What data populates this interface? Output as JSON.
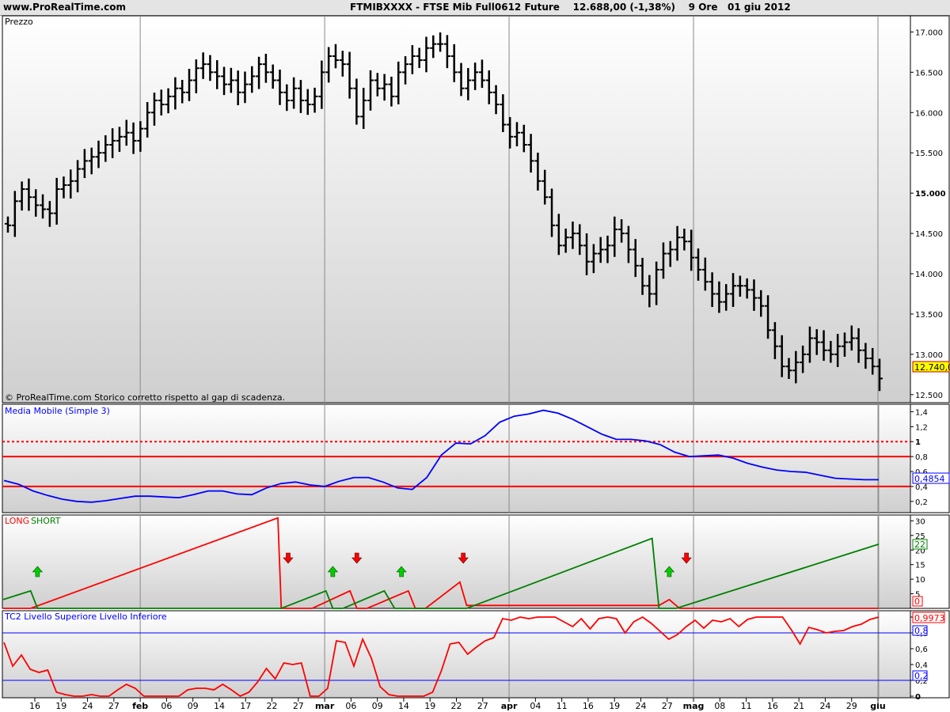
{
  "header": {
    "site": "www.ProRealTime.com",
    "title": "FTMIBXXXX - FTSE Mib Full0612 Future    12.688,00 (-1,38%)    9 Ore   01 giu 2012"
  },
  "colors": {
    "price": "#000000",
    "ma": "#0000ff",
    "long": "#ff0000",
    "short": "#008000",
    "level": "#0000ff",
    "ref": "#ff0000",
    "panel_bg_top": "#ffffff",
    "panel_bg_bottom": "#cfcfcf"
  },
  "price_panel": {
    "label": "Prezzo",
    "footer": "© ProRealTime.com  Storico corretto rispetto al gap di scadenza.",
    "current_value_label": "12.740,0",
    "y_ticks": [
      "17.000",
      "16.500",
      "16.000",
      "15.500",
      "15.000",
      "14.500",
      "14.000",
      "13.500",
      "13.000",
      "12.500"
    ]
  },
  "ma_panel": {
    "label": "Media Mobile (Simple 3)",
    "current_value_label": "0,4854",
    "y_ticks": [
      "1,4",
      "1,2",
      "1",
      "0,8",
      "0,6",
      "0,4",
      "0,2"
    ]
  },
  "ls_panel": {
    "label_long": "LONG",
    "label_short": "SHORT",
    "value_long_label": "0",
    "value_short_label": "22",
    "y_ticks": [
      "30",
      "25",
      "20",
      "15",
      "10",
      "5"
    ]
  },
  "tc2_panel": {
    "label": "TC2 Livello Superiore Livello Inferiore",
    "current_value_label": "0,9973",
    "upper_label": "0,8",
    "lower_label": "0,2",
    "y_ticks": [
      "1",
      "0,8",
      "0,6",
      "0,4",
      "0,2",
      "0"
    ]
  },
  "x_axis": {
    "ticks": [
      {
        "label": "16",
        "bold": false
      },
      {
        "label": "19",
        "bold": false
      },
      {
        "label": "24",
        "bold": false
      },
      {
        "label": "27",
        "bold": false
      },
      {
        "label": "feb",
        "bold": true
      },
      {
        "label": "06",
        "bold": false
      },
      {
        "label": "09",
        "bold": false
      },
      {
        "label": "14",
        "bold": false
      },
      {
        "label": "17",
        "bold": false
      },
      {
        "label": "22",
        "bold": false
      },
      {
        "label": "27",
        "bold": false
      },
      {
        "label": "mar",
        "bold": true
      },
      {
        "label": "06",
        "bold": false
      },
      {
        "label": "09",
        "bold": false
      },
      {
        "label": "14",
        "bold": false
      },
      {
        "label": "19",
        "bold": false
      },
      {
        "label": "22",
        "bold": false
      },
      {
        "label": "27",
        "bold": false
      },
      {
        "label": "apr",
        "bold": true
      },
      {
        "label": "04",
        "bold": false
      },
      {
        "label": "11",
        "bold": false
      },
      {
        "label": "16",
        "bold": false
      },
      {
        "label": "19",
        "bold": false
      },
      {
        "label": "24",
        "bold": false
      },
      {
        "label": "27",
        "bold": false
      },
      {
        "label": "mag",
        "bold": true
      },
      {
        "label": "08",
        "bold": false
      },
      {
        "label": "11",
        "bold": false
      },
      {
        "label": "16",
        "bold": false
      },
      {
        "label": "21",
        "bold": false
      },
      {
        "label": "24",
        "bold": false
      },
      {
        "label": "29",
        "bold": false
      },
      {
        "label": "giu",
        "bold": true
      }
    ]
  },
  "chart_data": [
    {
      "type": "ohlc",
      "ylim": [
        12400,
        17200
      ],
      "close": [
        14600,
        14900,
        15050,
        14950,
        14850,
        14800,
        14750,
        15050,
        15100,
        15150,
        15300,
        15400,
        15450,
        15500,
        15600,
        15650,
        15700,
        15750,
        15650,
        15800,
        16000,
        16150,
        16100,
        16200,
        16300,
        16250,
        16400,
        16550,
        16600,
        16500,
        16450,
        16350,
        16400,
        16250,
        16350,
        16450,
        16600,
        16500,
        16400,
        16250,
        16150,
        16300,
        16150,
        16100,
        16200,
        16500,
        16700,
        16650,
        16600,
        16300,
        15950,
        16150,
        16400,
        16300,
        16350,
        16200,
        16500,
        16600,
        16700,
        16650,
        16800,
        16850,
        16850,
        16700,
        16500,
        16300,
        16400,
        16500,
        16400,
        16250,
        16100,
        15850,
        15700,
        15750,
        15600,
        15400,
        15150,
        14950,
        14600,
        14350,
        14450,
        14500,
        14350,
        14150,
        14250,
        14300,
        14350,
        14550,
        14500,
        14300,
        14100,
        13850,
        13750,
        14050,
        14250,
        14300,
        14450,
        14400,
        14200,
        14050,
        13900,
        13750,
        13650,
        13750,
        13850,
        13850,
        13800,
        13700,
        13600,
        13300,
        13100,
        12850,
        12800,
        12900,
        13000,
        13200,
        13150,
        13050,
        13000,
        13100,
        13150,
        13200,
        13050,
        12950,
        12850,
        12700
      ],
      "series": [
        {
          "name": "Prezzo"
        }
      ]
    },
    {
      "type": "line",
      "title": "Media Mobile (Simple 3)",
      "ylim": [
        0.05,
        1.5
      ],
      "reference_lines": [
        1.0,
        0.8,
        0.4
      ],
      "series": [
        {
          "name": "Media Mobile (Simple 3)",
          "values": [
            0.48,
            0.43,
            0.34,
            0.28,
            0.23,
            0.2,
            0.19,
            0.21,
            0.24,
            0.27,
            0.27,
            0.26,
            0.25,
            0.29,
            0.34,
            0.34,
            0.3,
            0.29,
            0.38,
            0.44,
            0.46,
            0.42,
            0.4,
            0.47,
            0.52,
            0.52,
            0.46,
            0.38,
            0.36,
            0.52,
            0.82,
            0.98,
            0.97,
            1.08,
            1.26,
            1.34,
            1.37,
            1.42,
            1.38,
            1.3,
            1.2,
            1.1,
            1.03,
            1.03,
            1.01,
            0.96,
            0.86,
            0.8,
            0.81,
            0.82,
            0.78,
            0.71,
            0.66,
            0.62,
            0.6,
            0.59,
            0.55,
            0.51,
            0.5,
            0.49,
            0.49
          ]
        }
      ]
    },
    {
      "type": "line",
      "ylim": [
        0,
        32
      ],
      "series": [
        {
          "name": "LONG",
          "points": [
            [
              0,
              0
            ],
            [
              8,
              0
            ],
            [
              80,
              31
            ],
            [
              81,
              0
            ],
            [
              90,
              0
            ],
            [
              101,
              6
            ],
            [
              103,
              0
            ],
            [
              105,
              0
            ],
            [
              106,
              0
            ],
            [
              118,
              6
            ],
            [
              120,
              0
            ],
            [
              123,
              0
            ],
            [
              133,
              9
            ],
            [
              135,
              1
            ],
            [
              191,
              1
            ],
            [
              194,
              3
            ],
            [
              197,
              0
            ],
            [
              246,
              0
            ],
            [
              255,
              0
            ]
          ]
        },
        {
          "name": "SHORT",
          "points": [
            [
              0,
              3
            ],
            [
              8,
              6
            ],
            [
              10,
              0
            ],
            [
              80,
              0
            ],
            [
              81,
              0
            ],
            [
              94,
              6
            ],
            [
              96,
              0
            ],
            [
              99,
              0
            ],
            [
              111,
              6
            ],
            [
              114,
              0
            ],
            [
              133,
              0
            ],
            [
              135,
              0
            ],
            [
              189,
              24
            ],
            [
              191,
              0
            ],
            [
              194,
              0
            ],
            [
              196,
              0
            ],
            [
              255,
              22
            ]
          ]
        }
      ],
      "markers": [
        {
          "type": "up",
          "color": "green",
          "x": 10
        },
        {
          "type": "down",
          "color": "red",
          "x": 83
        },
        {
          "type": "up",
          "color": "green",
          "x": 96
        },
        {
          "type": "down",
          "color": "red",
          "x": 103
        },
        {
          "type": "up",
          "color": "green",
          "x": 116
        },
        {
          "type": "down",
          "color": "red",
          "x": 134
        },
        {
          "type": "up",
          "color": "green",
          "x": 194
        },
        {
          "type": "down",
          "color": "red",
          "x": 199
        }
      ]
    },
    {
      "type": "line",
      "title": "TC2 Livello Superiore Livello Inferiore",
      "ylim": [
        -0.02,
        1.08
      ],
      "reference_lines": [
        0.8,
        0.2
      ],
      "series": [
        {
          "name": "TC2",
          "values": [
            0.68,
            0.38,
            0.52,
            0.34,
            0.3,
            0.33,
            0.05,
            0.02,
            0.0,
            0.0,
            0.02,
            0.0,
            0.0,
            0.08,
            0.15,
            0.1,
            0.0,
            0.0,
            0.0,
            0.0,
            0.0,
            0.08,
            0.1,
            0.1,
            0.08,
            0.15,
            0.08,
            0.0,
            0.05,
            0.18,
            0.35,
            0.22,
            0.42,
            0.4,
            0.42,
            0.0,
            0.0,
            0.1,
            0.7,
            0.68,
            0.38,
            0.72,
            0.48,
            0.12,
            0.02,
            0.0,
            0.0,
            0.0,
            0.0,
            0.05,
            0.32,
            0.66,
            0.68,
            0.53,
            0.62,
            0.7,
            0.74,
            0.98,
            0.96,
            1.0,
            0.98,
            1.0,
            1.0,
            1.0,
            0.94,
            0.88,
            0.98,
            0.85,
            0.98,
            1.0,
            0.98,
            0.8,
            0.94,
            1.0,
            0.92,
            0.82,
            0.72,
            0.78,
            0.88,
            0.96,
            0.86,
            0.96,
            0.94,
            0.98,
            0.88,
            0.97,
            1.0,
            1.0,
            1.0,
            1.0,
            0.84,
            0.66,
            0.87,
            0.84,
            0.8,
            0.82,
            0.83,
            0.88,
            0.91,
            0.97,
            1.0
          ]
        }
      ]
    }
  ]
}
